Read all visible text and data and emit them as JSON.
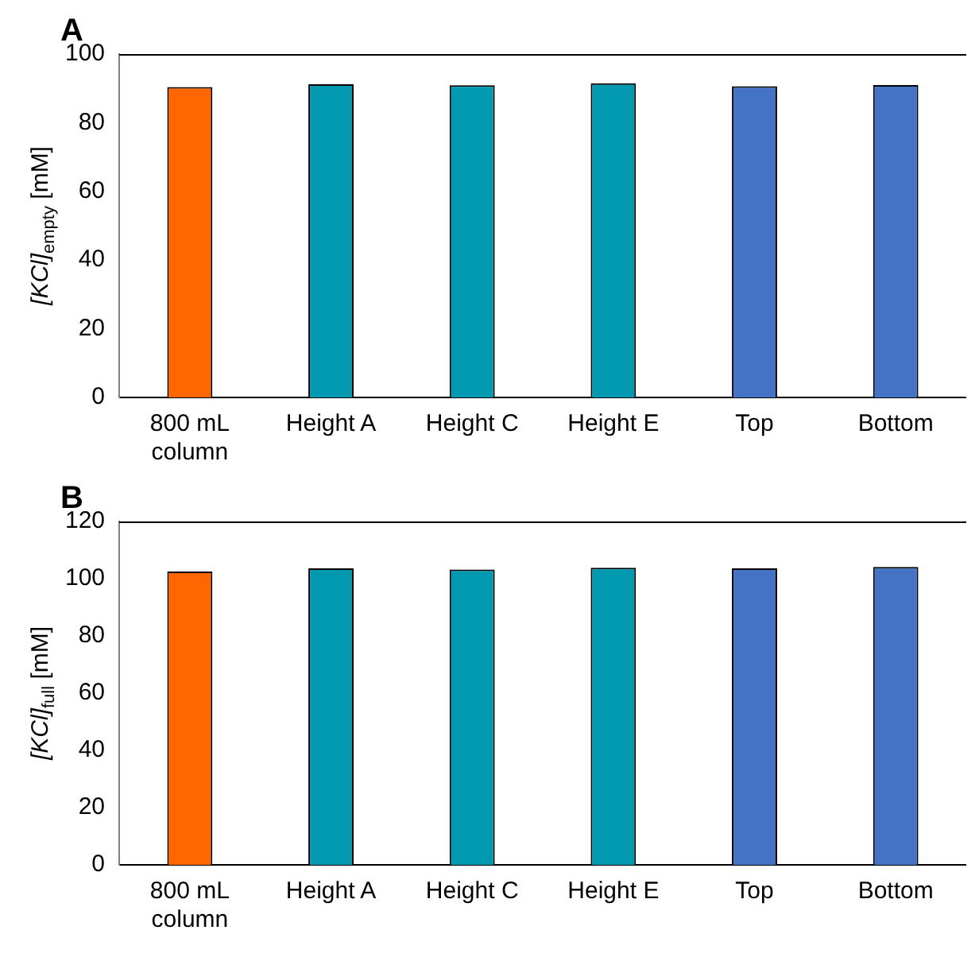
{
  "chart_data": [
    {
      "type": "bar",
      "title": "A",
      "ylabel": "[KCl]$_{empty}$ [mM]",
      "categories": [
        "800 mL column",
        "Height A",
        "Height C",
        "Height E",
        "Top",
        "Bottom"
      ],
      "values": [
        90.4,
        91.2,
        90.9,
        91.5,
        90.6,
        91.0
      ],
      "colors": [
        "#ff6600",
        "#0099b0",
        "#0099b0",
        "#0099b0",
        "#4472c4",
        "#4472c4"
      ],
      "ylim": [
        0,
        100
      ],
      "yticks": [
        0,
        20,
        40,
        60,
        80,
        100
      ],
      "grid": false,
      "legend": false
    },
    {
      "type": "bar",
      "title": "B",
      "ylabel": "[KCl]$_{full}$ [mM]",
      "categories": [
        "800 mL column",
        "Height A",
        "Height C",
        "Height E",
        "Top",
        "Bottom"
      ],
      "values": [
        102.5,
        103.6,
        103.2,
        103.8,
        103.6,
        104.1
      ],
      "colors": [
        "#ff6600",
        "#0099b0",
        "#0099b0",
        "#0099b0",
        "#4472c4",
        "#4472c4"
      ],
      "ylim": [
        0,
        120
      ],
      "yticks": [
        0,
        20,
        40,
        60,
        80,
        100,
        120
      ],
      "grid": false,
      "legend": false
    }
  ]
}
